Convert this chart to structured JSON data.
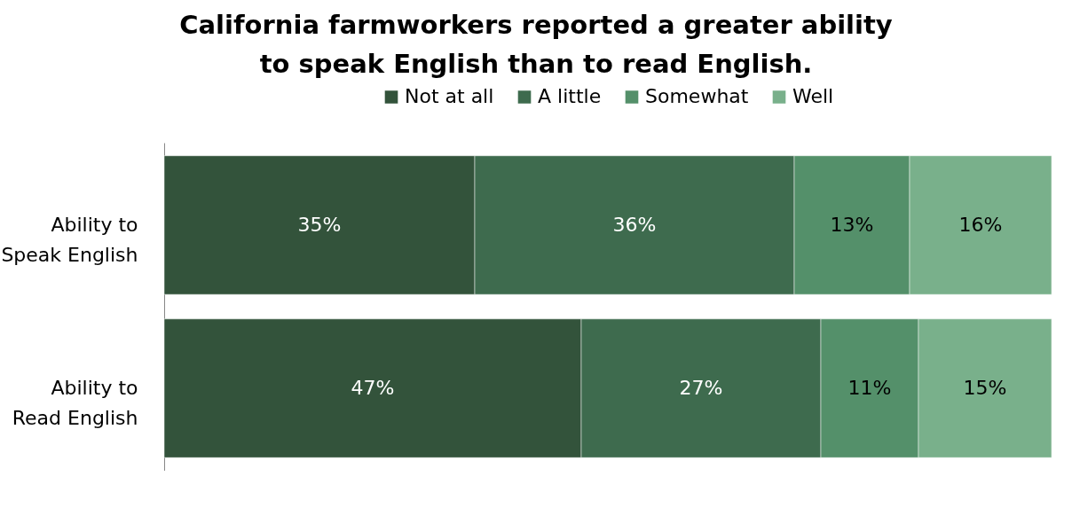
{
  "chart_data": {
    "type": "bar",
    "orientation": "horizontal",
    "stacked": true,
    "title": "California farmworkers reported a greater ability to speak English than to read English.",
    "categories": [
      "Ability to Speak English",
      "Ability to Read English"
    ],
    "series": [
      {
        "name": "Not at all",
        "color": "#33533b",
        "values": [
          35,
          47
        ],
        "value_labels": [
          "35%",
          "47%"
        ]
      },
      {
        "name": "A little",
        "color": "#3e6b4e",
        "values": [
          36,
          27
        ],
        "value_labels": [
          "36%",
          "27%"
        ]
      },
      {
        "name": "Somewhat",
        "color": "#54906a",
        "values": [
          13,
          11
        ],
        "value_labels": [
          "13%",
          "11%"
        ]
      },
      {
        "name": "Well",
        "color": "#79b08b",
        "values": [
          16,
          15
        ],
        "value_labels": [
          "16%",
          "15%"
        ]
      }
    ],
    "legend": "top"
  }
}
